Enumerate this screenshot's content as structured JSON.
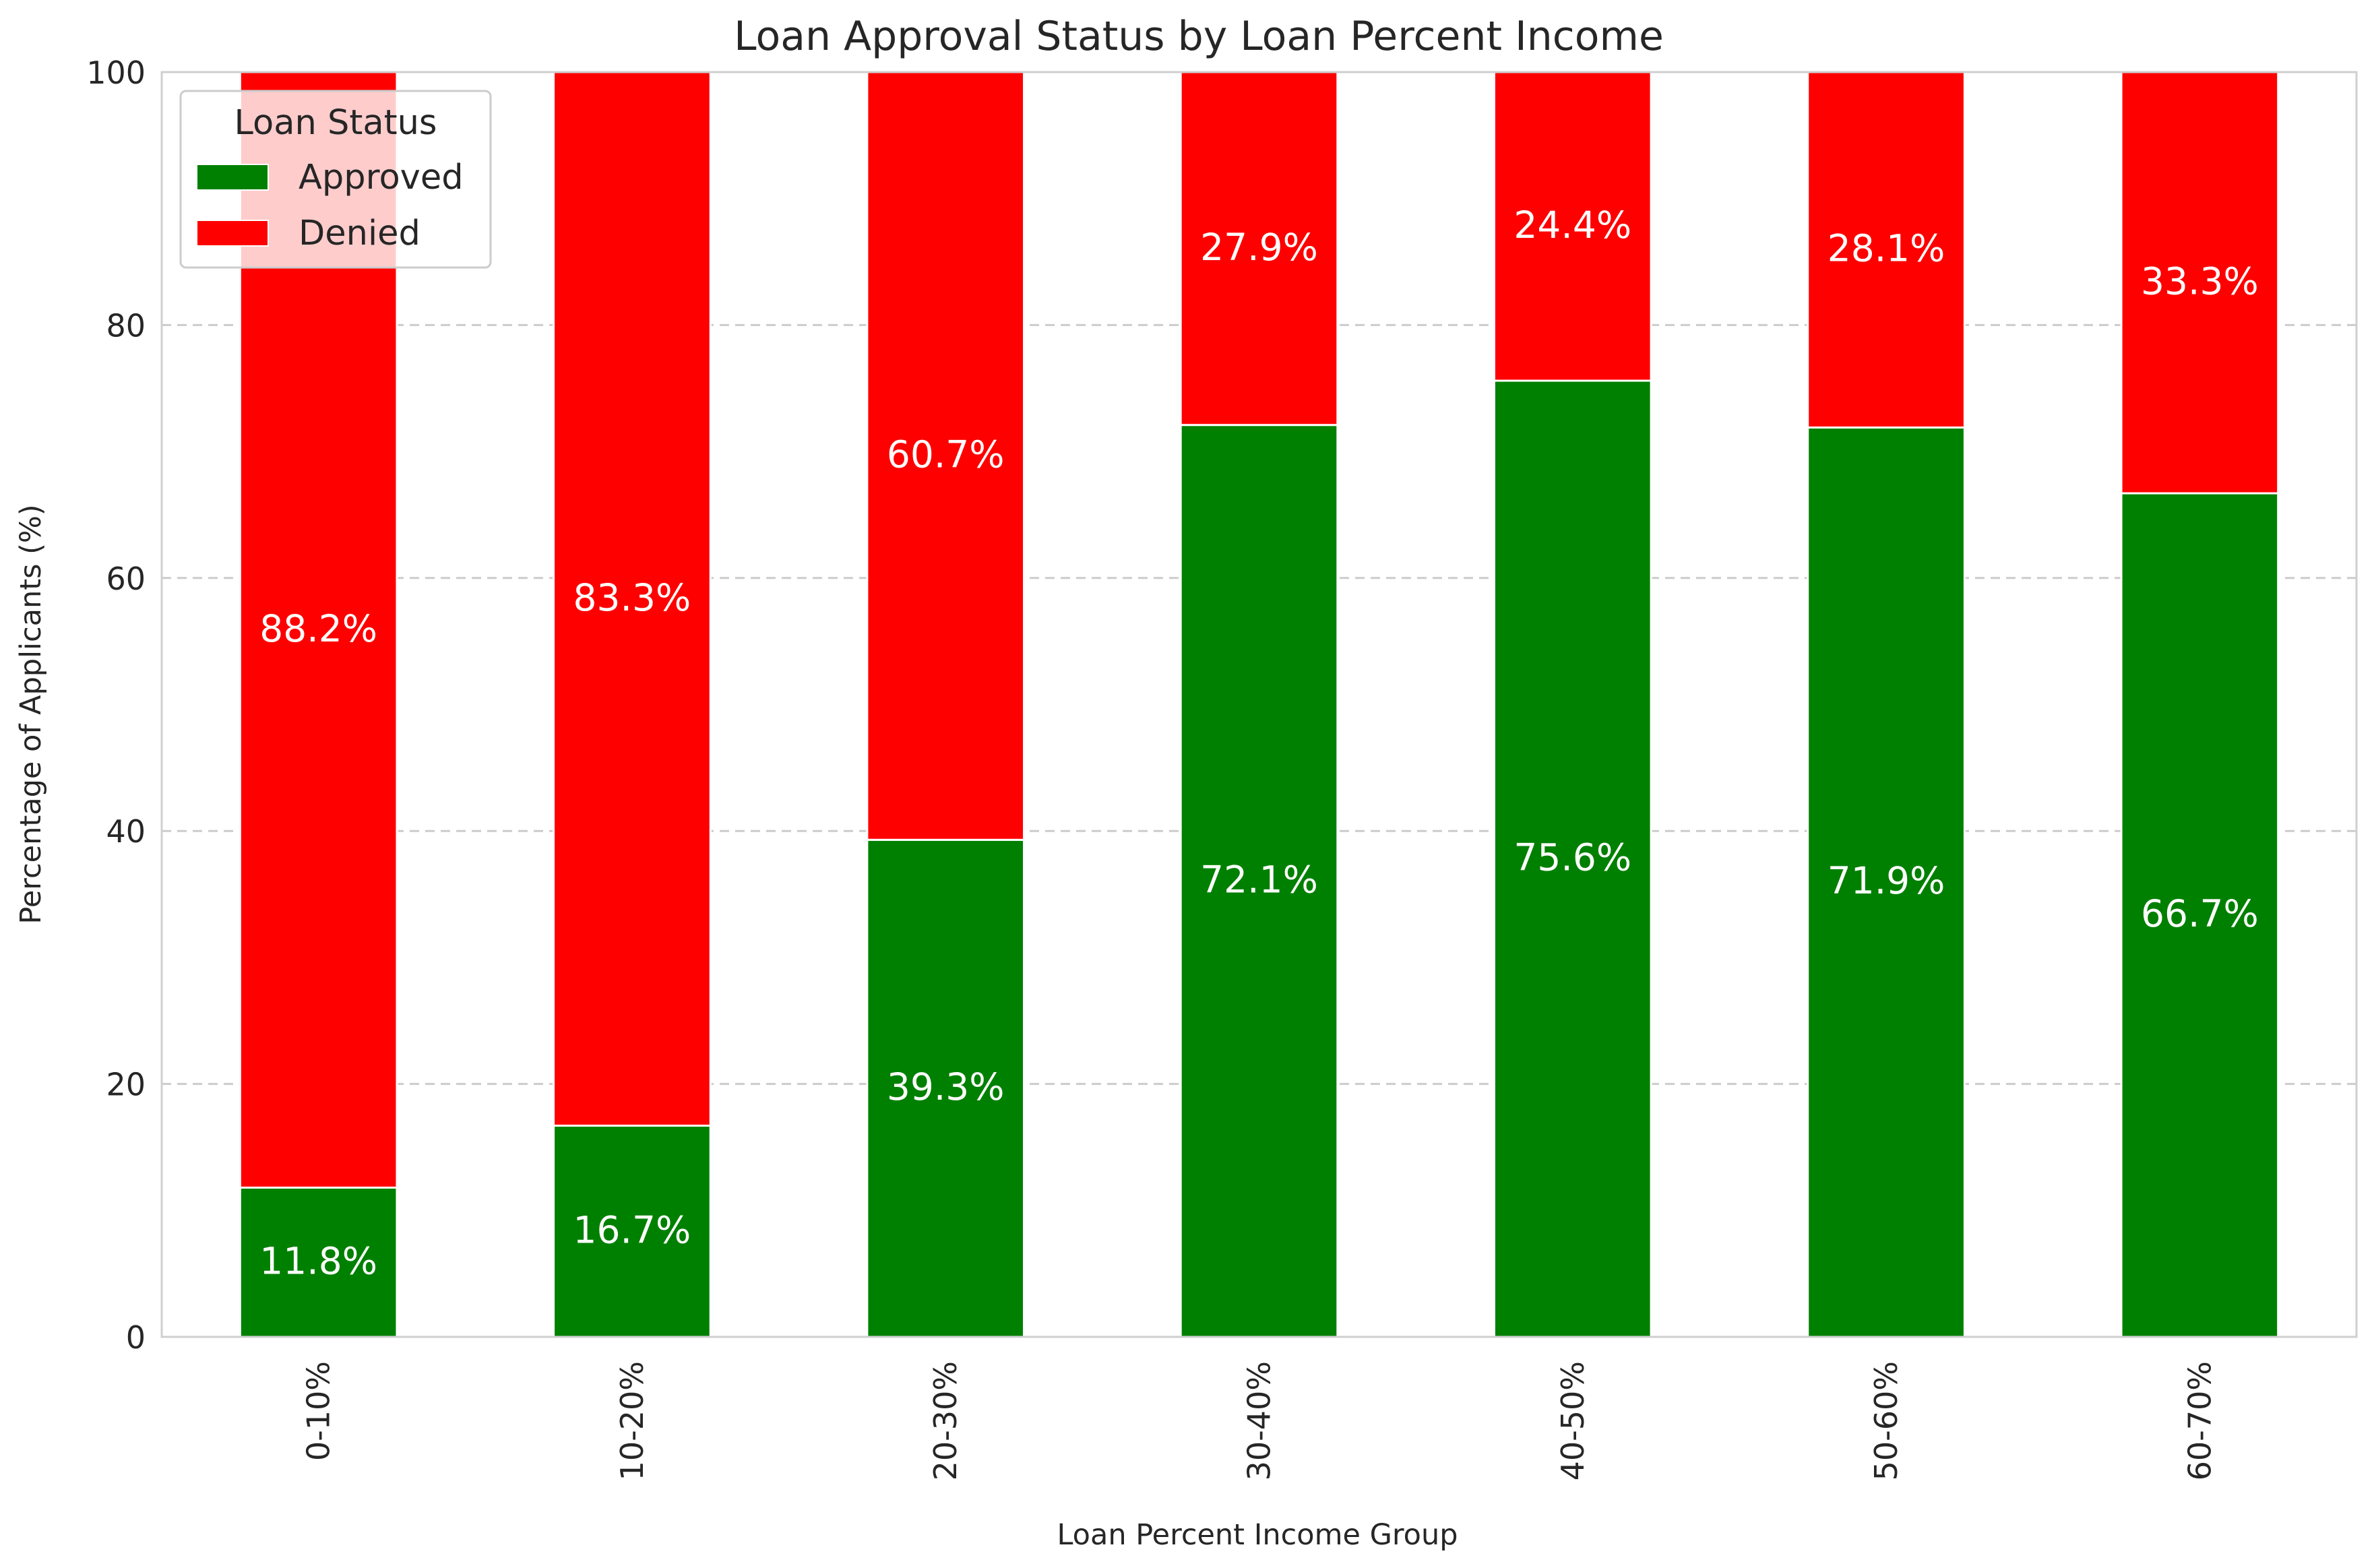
{
  "chart_data": {
    "type": "bar",
    "stacked": true,
    "title": "Loan Approval Status by Loan Percent Income",
    "xlabel": "Loan Percent Income Group",
    "ylabel": "Percentage of Applicants (%)",
    "ylim": [
      0,
      100
    ],
    "yticks": [
      "0",
      "20",
      "40",
      "60",
      "80",
      "100"
    ],
    "grid": "y-dashed",
    "legend": {
      "title": "Loan Status",
      "placement": "top-left"
    },
    "categories": [
      "0-10%",
      "10-20%",
      "20-30%",
      "30-40%",
      "40-50%",
      "50-60%",
      "60-70%"
    ],
    "series": [
      {
        "name": "Approved",
        "color": "#008000",
        "values": [
          11.8,
          16.7,
          39.3,
          72.1,
          75.6,
          71.9,
          66.7
        ],
        "labels": [
          "11.8%",
          "16.7%",
          "39.3%",
          "72.1%",
          "75.6%",
          "71.9%",
          "66.7%"
        ]
      },
      {
        "name": "Denied",
        "color": "#ff0000",
        "values": [
          88.2,
          83.3,
          60.7,
          27.9,
          24.4,
          28.1,
          33.3
        ],
        "labels": [
          "88.2%",
          "83.3%",
          "60.7%",
          "27.9%",
          "24.4%",
          "28.1%",
          "33.3%"
        ]
      }
    ]
  }
}
